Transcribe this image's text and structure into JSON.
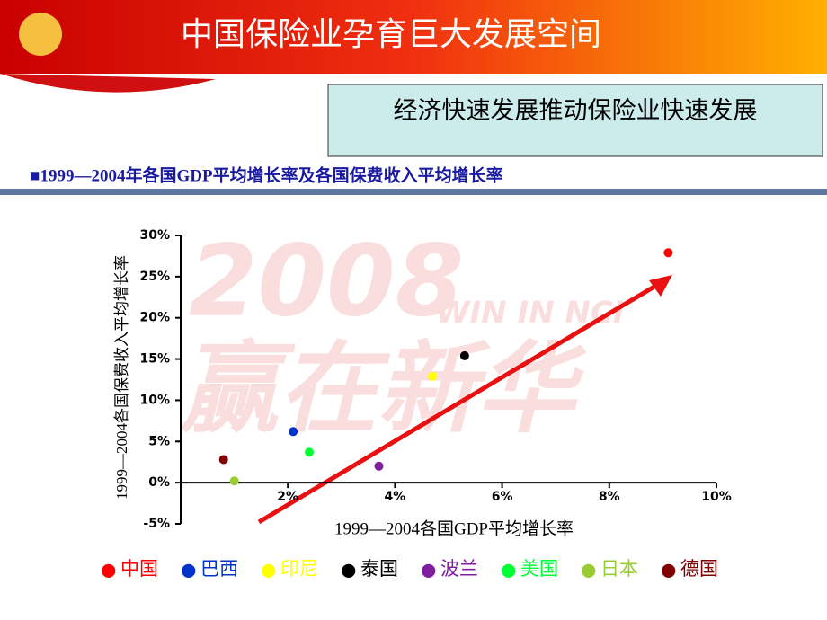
{
  "slide": {
    "title": "中国保险业孕育巨大发展空间",
    "callout": "经济快速发展推动保险业快速发展",
    "subtitle": "■1999—2004年各国GDP平均增长率及各国保费收入平均增长率",
    "watermark": [
      "2008",
      "WIN IN NCI",
      "赢在新华"
    ]
  },
  "chart_data": {
    "type": "scatter",
    "x_label": "1999—2004各国GDP平均增长率",
    "y_label": "1999—2004各国保费收入平均增长率",
    "xlim": [
      0,
      10
    ],
    "ylim": [
      -5,
      30
    ],
    "xticks": [
      {
        "value": 2,
        "label": "2%"
      },
      {
        "value": 4,
        "label": "4%"
      },
      {
        "value": 6,
        "label": "6%"
      },
      {
        "value": 8,
        "label": "8%"
      },
      {
        "value": 10,
        "label": "10%"
      }
    ],
    "yticks": [
      {
        "value": -5,
        "label": "-5%"
      },
      {
        "value": 0,
        "label": "0%"
      },
      {
        "value": 5,
        "label": "5%"
      },
      {
        "value": 10,
        "label": "10%"
      },
      {
        "value": 15,
        "label": "15%"
      },
      {
        "value": 20,
        "label": "20%"
      },
      {
        "value": 25,
        "label": "25%"
      },
      {
        "value": 30,
        "label": "30%"
      }
    ],
    "legend_marker": "●",
    "series": [
      {
        "name": "中国",
        "color": "#ff0000",
        "x": [
          9.1
        ],
        "values": [
          27.9
        ]
      },
      {
        "name": "巴西",
        "color": "#0033cc",
        "x": [
          2.1
        ],
        "values": [
          6.2
        ]
      },
      {
        "name": "印尼",
        "color": "#ffff00",
        "x": [
          4.7
        ],
        "values": [
          12.9
        ]
      },
      {
        "name": "泰国",
        "color": "#000000",
        "x": [
          5.3
        ],
        "values": [
          15.4
        ]
      },
      {
        "name": "波兰",
        "color": "#7f1f9f",
        "x": [
          3.7
        ],
        "values": [
          2.0
        ]
      },
      {
        "name": "美国",
        "color": "#00ff33",
        "x": [
          2.4
        ],
        "values": [
          3.7
        ]
      },
      {
        "name": "日本",
        "color": "#99cc33",
        "x": [
          1.0
        ],
        "values": [
          0.2
        ]
      },
      {
        "name": "德国",
        "color": "#800000",
        "x": [
          0.8
        ],
        "values": [
          2.8
        ]
      }
    ]
  }
}
